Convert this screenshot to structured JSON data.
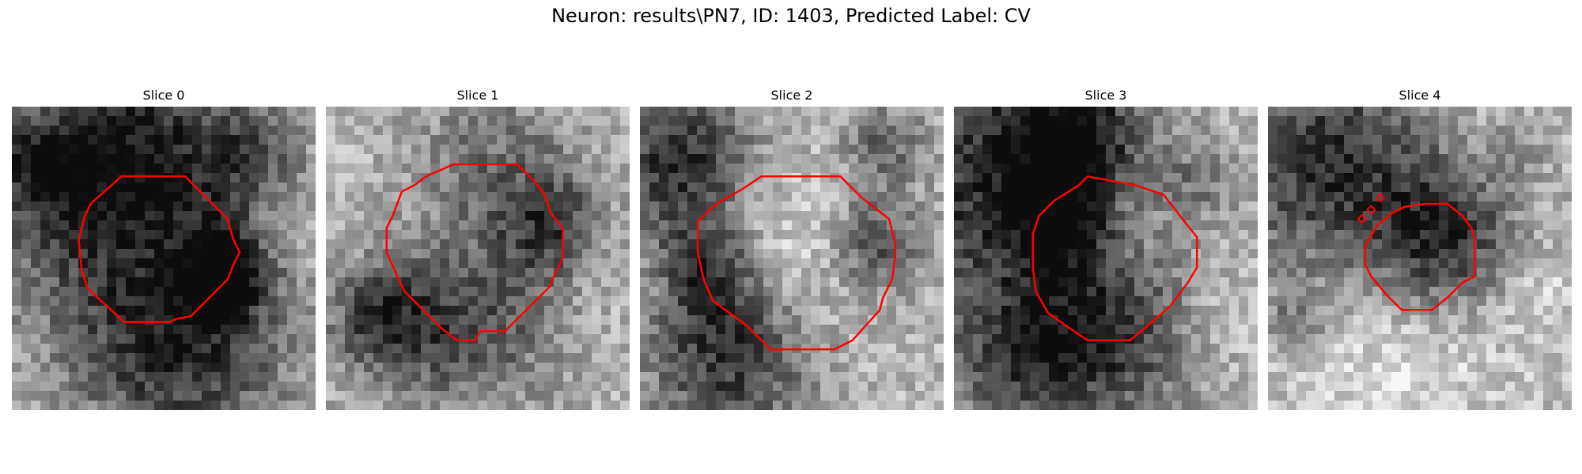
{
  "figure": {
    "title": "Neuron: results\\PN7, ID: 1403, Predicted Label: CV",
    "contour_color": "#ff0000"
  },
  "panels": [
    {
      "title": "Slice 0",
      "image": {
        "dark_blobs": [
          [
            0.45,
            0.23,
            0.28,
            0.85
          ],
          [
            0.55,
            0.8,
            0.25,
            0.95
          ],
          [
            0.25,
            0.25,
            0.3,
            0.55
          ],
          [
            0.7,
            0.55,
            0.1,
            0.9
          ],
          [
            0.8,
            0.15,
            0.1,
            0.4
          ],
          [
            0.1,
            0.2,
            0.1,
            0.55
          ]
        ],
        "bright_blobs": [
          [
            0.45,
            0.45,
            0.15,
            0.25
          ],
          [
            0.9,
            0.4,
            0.1,
            0.2
          ]
        ]
      },
      "contour": [
        [
          0.36,
          0.23
        ],
        [
          0.57,
          0.23
        ],
        [
          0.71,
          0.37
        ],
        [
          0.73,
          0.44
        ],
        [
          0.75,
          0.48
        ],
        [
          0.73,
          0.52
        ],
        [
          0.71,
          0.57
        ],
        [
          0.65,
          0.63
        ],
        [
          0.59,
          0.69
        ],
        [
          0.54,
          0.7
        ],
        [
          0.52,
          0.71
        ],
        [
          0.37,
          0.71
        ],
        [
          0.25,
          0.6
        ],
        [
          0.23,
          0.54
        ],
        [
          0.22,
          0.44
        ],
        [
          0.24,
          0.36
        ],
        [
          0.26,
          0.32
        ]
      ],
      "markers": []
    },
    {
      "title": "Slice 1",
      "image": {
        "dark_blobs": [
          [
            0.45,
            0.68,
            0.22,
            0.9
          ],
          [
            0.18,
            0.7,
            0.12,
            0.7
          ],
          [
            0.75,
            0.4,
            0.12,
            0.7
          ],
          [
            0.55,
            0.22,
            0.2,
            0.6
          ]
        ],
        "bright_blobs": [
          [
            0.45,
            0.43,
            0.2,
            0.35
          ],
          [
            0.85,
            0.55,
            0.1,
            0.15
          ]
        ]
      },
      "contour": [
        [
          0.42,
          0.19
        ],
        [
          0.63,
          0.19
        ],
        [
          0.69,
          0.25
        ],
        [
          0.72,
          0.29
        ],
        [
          0.74,
          0.35
        ],
        [
          0.78,
          0.4
        ],
        [
          0.78,
          0.5
        ],
        [
          0.74,
          0.58
        ],
        [
          0.74,
          0.59
        ],
        [
          0.62,
          0.71
        ],
        [
          0.59,
          0.74
        ],
        [
          0.51,
          0.74
        ],
        [
          0.49,
          0.77
        ],
        [
          0.43,
          0.77
        ],
        [
          0.38,
          0.73
        ],
        [
          0.26,
          0.61
        ],
        [
          0.24,
          0.57
        ],
        [
          0.2,
          0.48
        ],
        [
          0.2,
          0.4
        ],
        [
          0.22,
          0.36
        ],
        [
          0.25,
          0.28
        ],
        [
          0.29,
          0.26
        ],
        [
          0.33,
          0.23
        ]
      ],
      "markers": []
    },
    {
      "title": "Slice 2",
      "image": {
        "dark_blobs": [
          [
            0.13,
            0.18,
            0.18,
            1.0
          ],
          [
            0.3,
            0.82,
            0.2,
            0.95
          ],
          [
            0.22,
            0.55,
            0.12,
            0.75
          ],
          [
            0.78,
            0.45,
            0.12,
            0.8
          ],
          [
            0.8,
            0.12,
            0.1,
            0.6
          ]
        ],
        "bright_blobs": [
          [
            0.5,
            0.48,
            0.2,
            0.4
          ],
          [
            0.05,
            0.6,
            0.08,
            0.2
          ]
        ]
      },
      "contour": [
        [
          0.4,
          0.23
        ],
        [
          0.66,
          0.23
        ],
        [
          0.73,
          0.3
        ],
        [
          0.82,
          0.37
        ],
        [
          0.84,
          0.45
        ],
        [
          0.84,
          0.5
        ],
        [
          0.83,
          0.57
        ],
        [
          0.8,
          0.63
        ],
        [
          0.79,
          0.67
        ],
        [
          0.7,
          0.77
        ],
        [
          0.64,
          0.8
        ],
        [
          0.43,
          0.8
        ],
        [
          0.35,
          0.72
        ],
        [
          0.24,
          0.64
        ],
        [
          0.21,
          0.57
        ],
        [
          0.19,
          0.48
        ],
        [
          0.19,
          0.38
        ],
        [
          0.24,
          0.33
        ],
        [
          0.27,
          0.31
        ],
        [
          0.34,
          0.27
        ]
      ],
      "markers": []
    },
    {
      "title": "Slice 3",
      "image": {
        "dark_blobs": [
          [
            0.15,
            0.25,
            0.3,
            1.0
          ],
          [
            0.4,
            0.1,
            0.15,
            0.9
          ],
          [
            0.5,
            0.73,
            0.22,
            1.0
          ],
          [
            0.2,
            0.85,
            0.15,
            0.6
          ],
          [
            0.8,
            0.25,
            0.1,
            0.4
          ],
          [
            0.35,
            0.4,
            0.1,
            0.7
          ]
        ],
        "bright_blobs": [
          [
            0.55,
            0.45,
            0.18,
            0.3
          ],
          [
            0.85,
            0.7,
            0.12,
            0.25
          ]
        ]
      },
      "contour": [
        [
          0.41,
          0.26
        ],
        [
          0.44,
          0.23
        ],
        [
          0.6,
          0.26
        ],
        [
          0.69,
          0.29
        ],
        [
          0.76,
          0.38
        ],
        [
          0.8,
          0.43
        ],
        [
          0.8,
          0.53
        ],
        [
          0.77,
          0.58
        ],
        [
          0.71,
          0.66
        ],
        [
          0.64,
          0.72
        ],
        [
          0.58,
          0.77
        ],
        [
          0.44,
          0.77
        ],
        [
          0.38,
          0.73
        ],
        [
          0.31,
          0.68
        ],
        [
          0.27,
          0.61
        ],
        [
          0.26,
          0.53
        ],
        [
          0.26,
          0.42
        ],
        [
          0.28,
          0.36
        ],
        [
          0.33,
          0.31
        ]
      ],
      "markers": []
    },
    {
      "title": "Slice 4",
      "image": {
        "dark_blobs": [
          [
            0.2,
            0.2,
            0.25,
            1.0
          ],
          [
            0.58,
            0.45,
            0.17,
            1.0
          ],
          [
            0.8,
            0.12,
            0.08,
            0.4
          ],
          [
            0.1,
            0.7,
            0.08,
            0.4
          ]
        ],
        "bright_blobs": [
          [
            0.45,
            0.75,
            0.25,
            0.35
          ],
          [
            0.9,
            0.6,
            0.1,
            0.2
          ],
          [
            0.75,
            0.08,
            0.1,
            0.2
          ]
        ]
      },
      "contour": [
        [
          0.45,
          0.33
        ],
        [
          0.52,
          0.32
        ],
        [
          0.59,
          0.32
        ],
        [
          0.64,
          0.36
        ],
        [
          0.67,
          0.4
        ],
        [
          0.68,
          0.43
        ],
        [
          0.68,
          0.56
        ],
        [
          0.64,
          0.58
        ],
        [
          0.59,
          0.63
        ],
        [
          0.54,
          0.67
        ],
        [
          0.44,
          0.67
        ],
        [
          0.39,
          0.62
        ],
        [
          0.34,
          0.56
        ],
        [
          0.32,
          0.52
        ],
        [
          0.32,
          0.46
        ],
        [
          0.36,
          0.39
        ],
        [
          0.41,
          0.35
        ]
      ],
      "markers": [
        [
          0.31,
          0.37
        ],
        [
          0.34,
          0.34
        ],
        [
          0.37,
          0.3
        ]
      ]
    }
  ]
}
